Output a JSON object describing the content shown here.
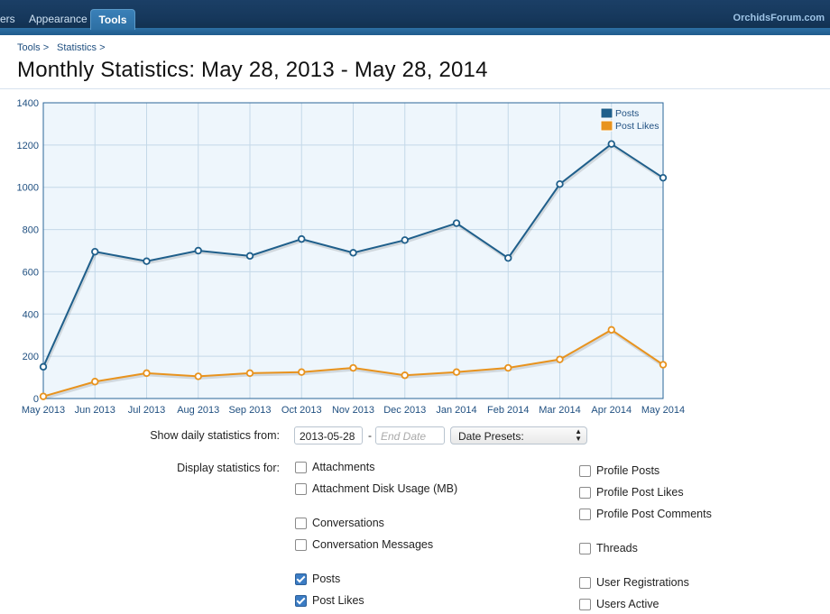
{
  "nav": {
    "tab_users": "ers",
    "tab_appearance": "Appearance",
    "tab_tools": "Tools",
    "site_link": "OrchidsForum.com"
  },
  "breadcrumb": [
    "Tools >",
    "Statistics >"
  ],
  "page_title": "Monthly Statistics: May 28, 2013 - May 28, 2014",
  "chart_data": {
    "type": "line",
    "categories": [
      "May 2013",
      "Jun 2013",
      "Jul 2013",
      "Aug 2013",
      "Sep 2013",
      "Oct 2013",
      "Nov 2013",
      "Dec 2013",
      "Jan 2014",
      "Feb 2014",
      "Mar 2014",
      "Apr 2014",
      "May 2014"
    ],
    "series": [
      {
        "name": "Posts",
        "color": "#1f5f8b",
        "values": [
          150,
          695,
          650,
          700,
          675,
          755,
          690,
          750,
          830,
          665,
          1015,
          1205,
          1045
        ]
      },
      {
        "name": "Post Likes",
        "color": "#e8931e",
        "values": [
          10,
          80,
          120,
          105,
          120,
          125,
          145,
          110,
          125,
          145,
          185,
          325,
          160
        ]
      }
    ],
    "yticks": [
      "0",
      "200",
      "400",
      "600",
      "800",
      "1000",
      "1200",
      "1400"
    ],
    "ylim": [
      0,
      1400
    ],
    "grid": true,
    "legend": "top-right"
  },
  "form": {
    "daily_label": "Show daily statistics from:",
    "start_date": "2013-05-28",
    "dash": "-",
    "end_date_placeholder": "End Date",
    "date_presets": "Date Presets:",
    "display_label": "Display statistics for:",
    "checkboxes_left": [
      {
        "label": "Attachments",
        "checked": false
      },
      {
        "label": "Attachment Disk Usage (MB)",
        "checked": false
      },
      {
        "label": "Conversations",
        "checked": false
      },
      {
        "label": "Conversation Messages",
        "checked": false
      },
      {
        "label": "Posts",
        "checked": true
      },
      {
        "label": "Post Likes",
        "checked": true
      }
    ],
    "checkboxes_right": [
      {
        "label": "Profile Posts",
        "checked": false
      },
      {
        "label": "Profile Post Likes",
        "checked": false
      },
      {
        "label": "Profile Post Comments",
        "checked": false
      },
      {
        "label": "Threads",
        "checked": false
      },
      {
        "label": "User Registrations",
        "checked": false
      },
      {
        "label": "Users Active",
        "checked": false
      }
    ]
  }
}
